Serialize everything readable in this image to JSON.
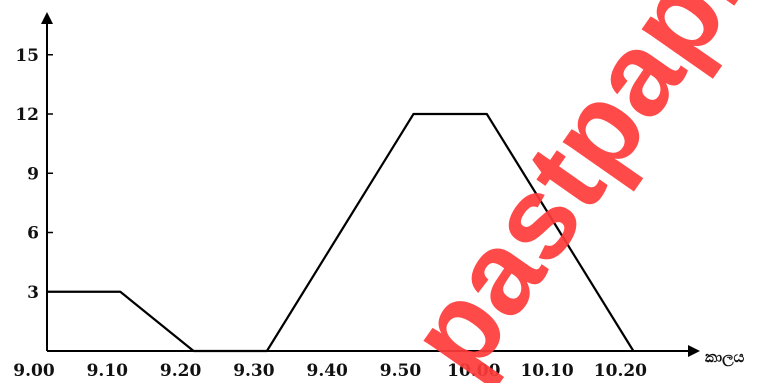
{
  "watermark": "pastpapi.lk",
  "chart_data": {
    "type": "line",
    "title": "",
    "xlabel": "කාලය",
    "ylabel": "",
    "categories": [
      "9.00",
      "9.10",
      "9.20",
      "9.30",
      "9.40",
      "9.50",
      "10.00",
      "10.10",
      "10.20"
    ],
    "series": [
      {
        "values": [
          3,
          3,
          0,
          0,
          6,
          12,
          12,
          6,
          0
        ]
      }
    ],
    "yticks": [
      3,
      6,
      9,
      12,
      15
    ],
    "ylim": [
      0,
      17
    ],
    "grid": false,
    "legend": "none",
    "line_color": "#000000"
  }
}
